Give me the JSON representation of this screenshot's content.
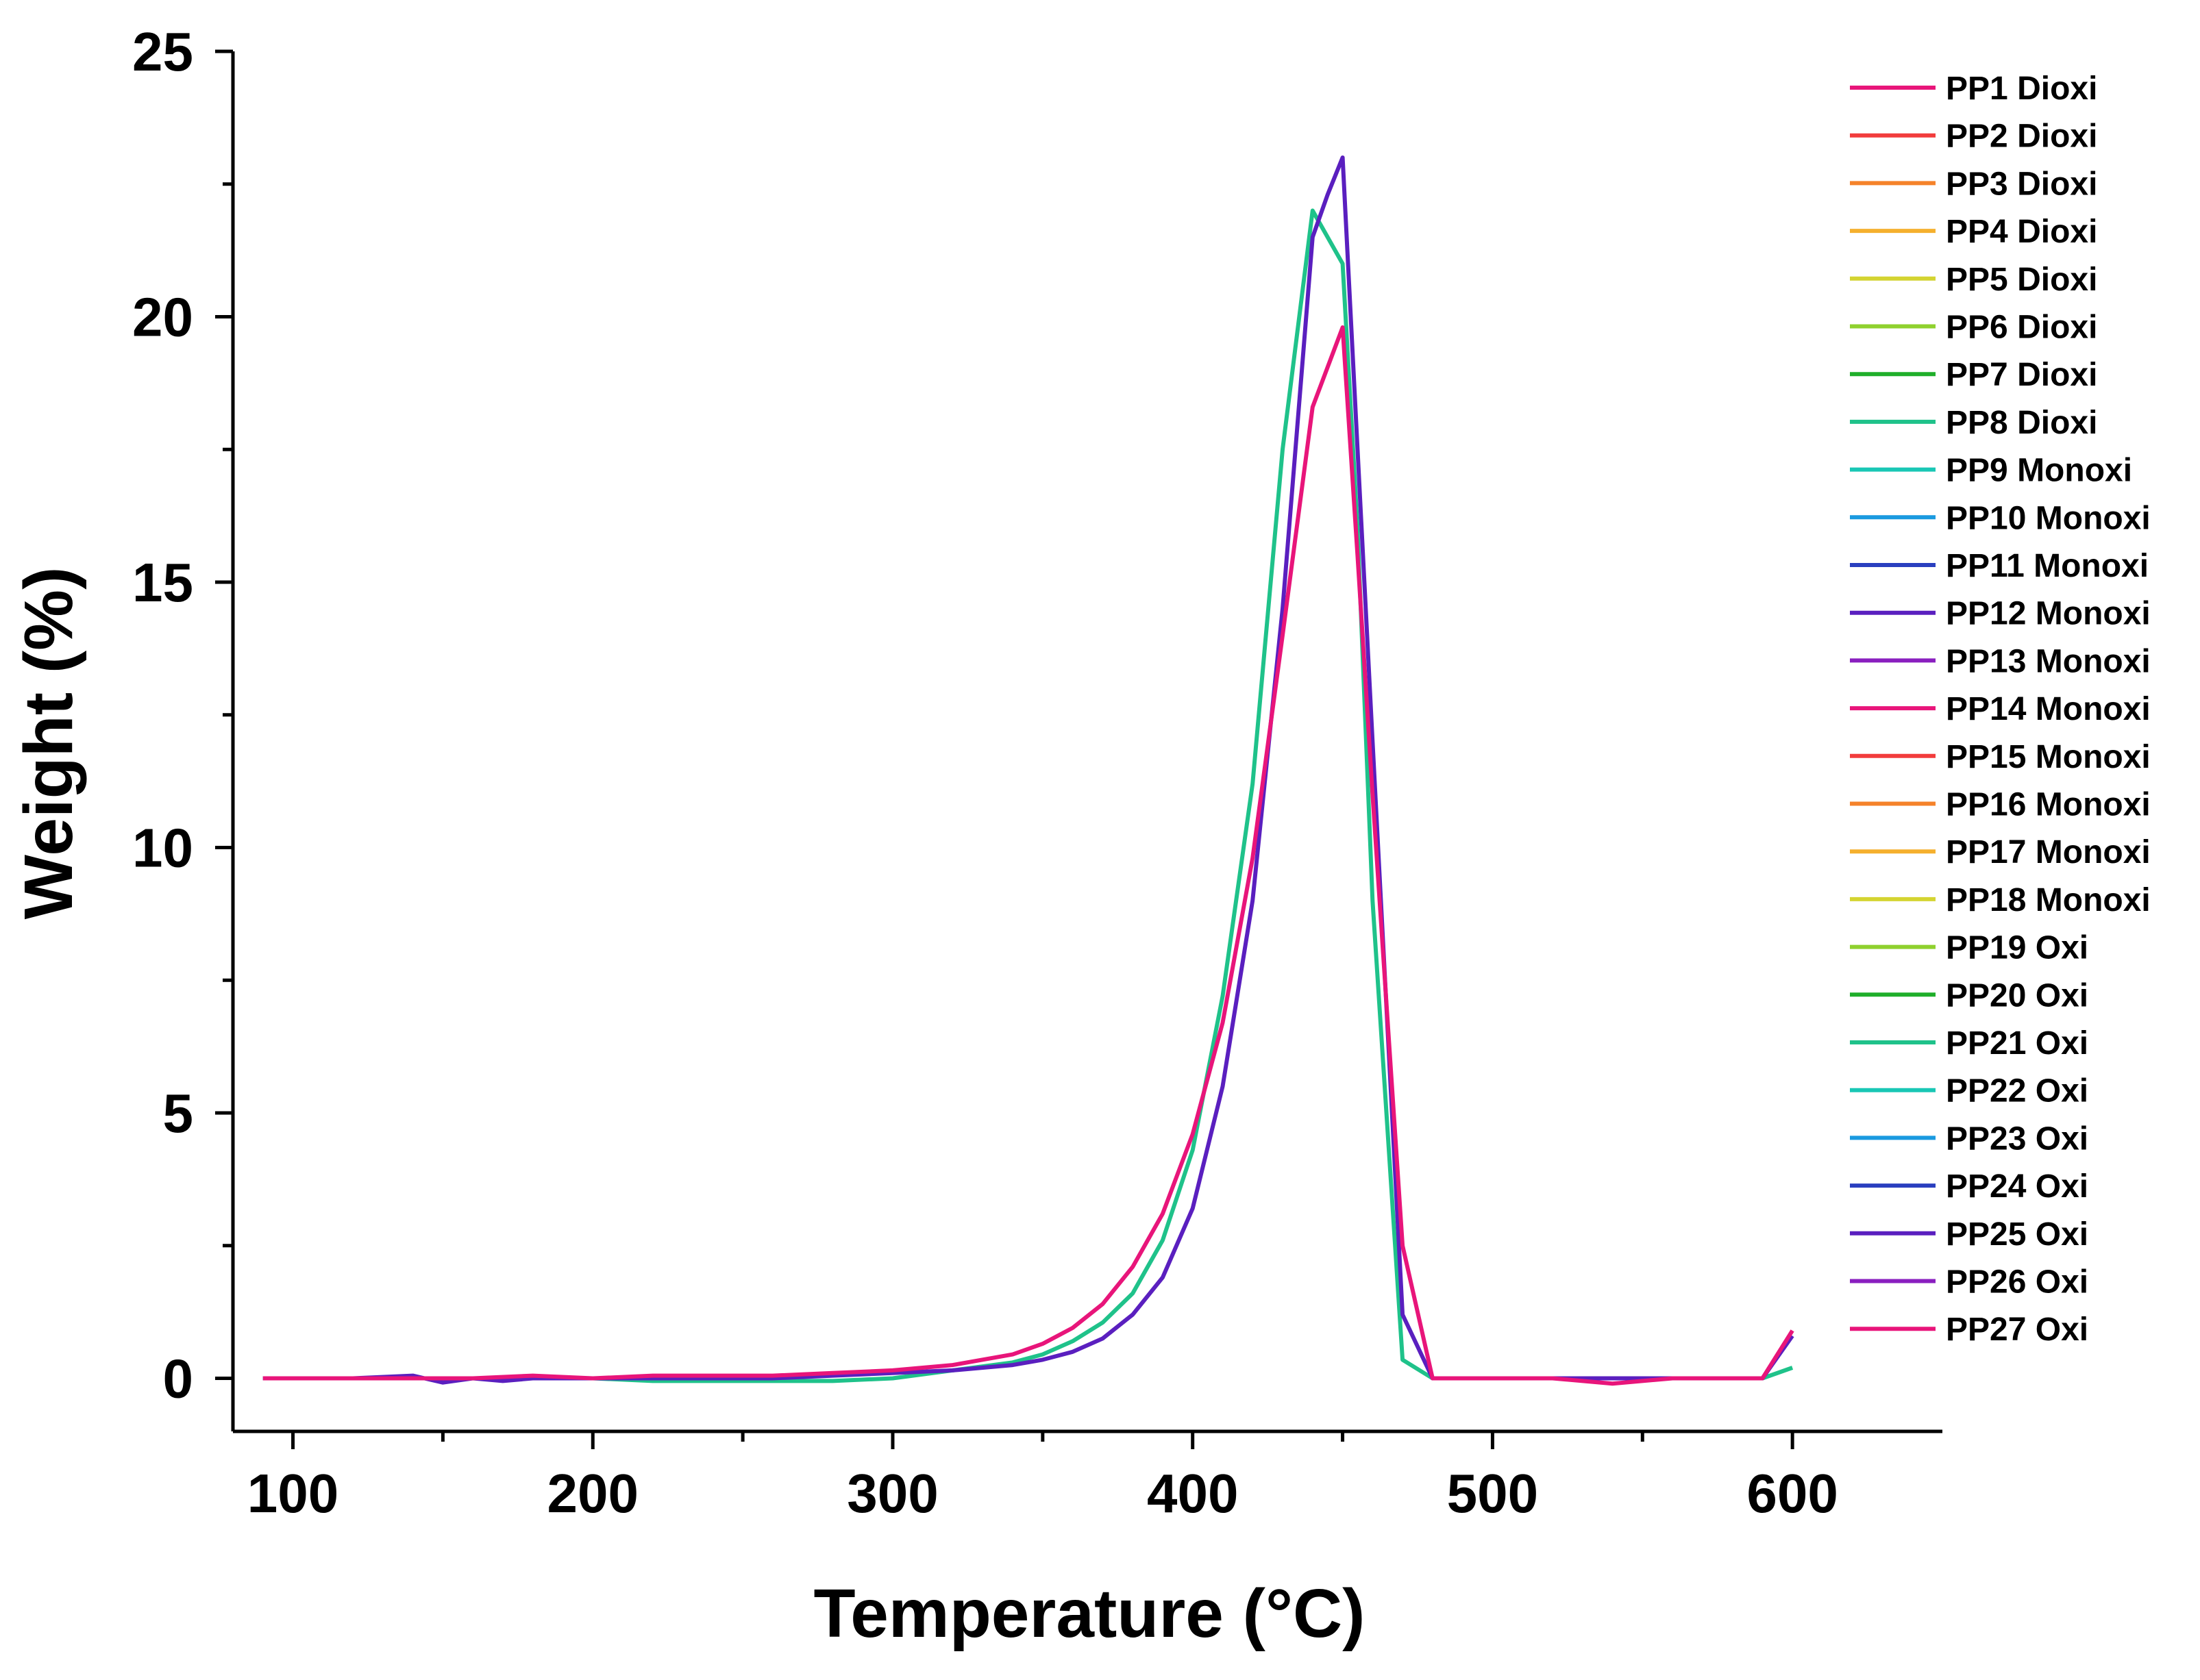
{
  "chart_data": {
    "type": "line",
    "title": "",
    "xlabel": "Temperature (°C)",
    "ylabel": "Weight (%)",
    "xlim": [
      80,
      650
    ],
    "ylim": [
      -1,
      25
    ],
    "xticks": [
      100,
      200,
      300,
      400,
      500,
      600
    ],
    "yticks": [
      0,
      5,
      10,
      15,
      20,
      25
    ],
    "grid": false,
    "legend_position": "right",
    "legend": [
      {
        "name": "PP1 Dioxi",
        "color": "#e8157a"
      },
      {
        "name": "PP2 Dioxi",
        "color": "#f23c3c"
      },
      {
        "name": "PP3 Dioxi",
        "color": "#f5822a"
      },
      {
        "name": "PP4 Dioxi",
        "color": "#f5b02e"
      },
      {
        "name": "PP5 Dioxi",
        "color": "#d4d431"
      },
      {
        "name": "PP6 Dioxi",
        "color": "#8fd12e"
      },
      {
        "name": "PP7 Dioxi",
        "color": "#1fae2a"
      },
      {
        "name": "PP8 Dioxi",
        "color": "#1fc28a"
      },
      {
        "name": "PP9 Monoxi",
        "color": "#19c7b5"
      },
      {
        "name": "PP10 Monoxi",
        "color": "#1a9ae0"
      },
      {
        "name": "PP11 Monoxi",
        "color": "#2a3fbf"
      },
      {
        "name": "PP12 Monoxi",
        "color": "#5a1fbf"
      },
      {
        "name": "PP13 Monoxi",
        "color": "#8a1fbf"
      },
      {
        "name": "PP14 Monoxi",
        "color": "#e8157a"
      },
      {
        "name": "PP15 Monoxi",
        "color": "#f23c3c"
      },
      {
        "name": "PP16 Monoxi",
        "color": "#f5822a"
      },
      {
        "name": "PP17 Monoxi",
        "color": "#f5b02e"
      },
      {
        "name": "PP18 Monoxi",
        "color": "#d4d431"
      },
      {
        "name": "PP19 Oxi",
        "color": "#8fd12e"
      },
      {
        "name": "PP20 Oxi",
        "color": "#1fae2a"
      },
      {
        "name": "PP21 Oxi",
        "color": "#1fc28a"
      },
      {
        "name": "PP22 Oxi",
        "color": "#19c7b5"
      },
      {
        "name": "PP23 Oxi",
        "color": "#1a9ae0"
      },
      {
        "name": "PP24 Oxi",
        "color": "#2a3fbf"
      },
      {
        "name": "PP25 Oxi",
        "color": "#5a1fbf"
      },
      {
        "name": "PP26 Oxi",
        "color": "#8a1fbf"
      },
      {
        "name": "PP27 Oxi",
        "color": "#e8157a"
      }
    ],
    "series": [
      {
        "name": "PP8 Dioxi",
        "color": "#1fc28a",
        "x": [
          90,
          100,
          120,
          140,
          160,
          180,
          200,
          220,
          240,
          260,
          280,
          300,
          320,
          340,
          350,
          360,
          370,
          380,
          390,
          400,
          410,
          420,
          430,
          440,
          450,
          455,
          460,
          470,
          480,
          490,
          500,
          520,
          540,
          560,
          580,
          590,
          600
        ],
        "y": [
          0,
          0,
          0,
          0,
          0,
          0,
          0,
          -0.05,
          -0.05,
          -0.05,
          -0.05,
          0,
          0.15,
          0.3,
          0.45,
          0.7,
          1.05,
          1.6,
          2.6,
          4.3,
          7.2,
          11.2,
          17.5,
          22.0,
          21.0,
          16,
          9,
          0.35,
          0,
          0,
          0,
          0,
          0,
          0,
          0,
          0,
          0.2
        ]
      },
      {
        "name": "PP25 Oxi",
        "color": "#5a1fbf",
        "x": [
          90,
          100,
          120,
          140,
          150,
          160,
          170,
          180,
          200,
          220,
          240,
          260,
          280,
          300,
          320,
          340,
          350,
          360,
          370,
          380,
          390,
          400,
          410,
          420,
          430,
          440,
          445,
          450,
          455,
          460,
          470,
          480,
          490,
          500,
          520,
          540,
          560,
          580,
          590,
          600
        ],
        "y": [
          0,
          0,
          0,
          0.05,
          -0.08,
          0,
          -0.05,
          0,
          0,
          0,
          0,
          0,
          0.05,
          0.1,
          0.15,
          0.25,
          0.35,
          0.5,
          0.75,
          1.2,
          1.9,
          3.2,
          5.5,
          9.0,
          14.5,
          21.5,
          22.3,
          23.0,
          17.5,
          12,
          1.2,
          0,
          0,
          0,
          0,
          0,
          0,
          0,
          0,
          0.8
        ]
      },
      {
        "name": "PP27 Oxi",
        "color": "#e8157a",
        "x": [
          90,
          100,
          120,
          140,
          160,
          180,
          200,
          220,
          240,
          260,
          280,
          300,
          320,
          340,
          350,
          360,
          370,
          380,
          390,
          400,
          410,
          420,
          430,
          440,
          450,
          455,
          460,
          470,
          480,
          490,
          500,
          520,
          540,
          560,
          580,
          590,
          600
        ],
        "y": [
          0,
          0,
          0,
          0,
          0,
          0.05,
          0,
          0.05,
          0.05,
          0.05,
          0.1,
          0.15,
          0.25,
          0.45,
          0.65,
          0.95,
          1.4,
          2.1,
          3.1,
          4.6,
          6.7,
          9.8,
          14.0,
          18.3,
          19.8,
          15.5,
          11,
          2.5,
          0,
          0,
          0,
          0,
          -0.1,
          0,
          0,
          0,
          0.9
        ]
      }
    ]
  }
}
